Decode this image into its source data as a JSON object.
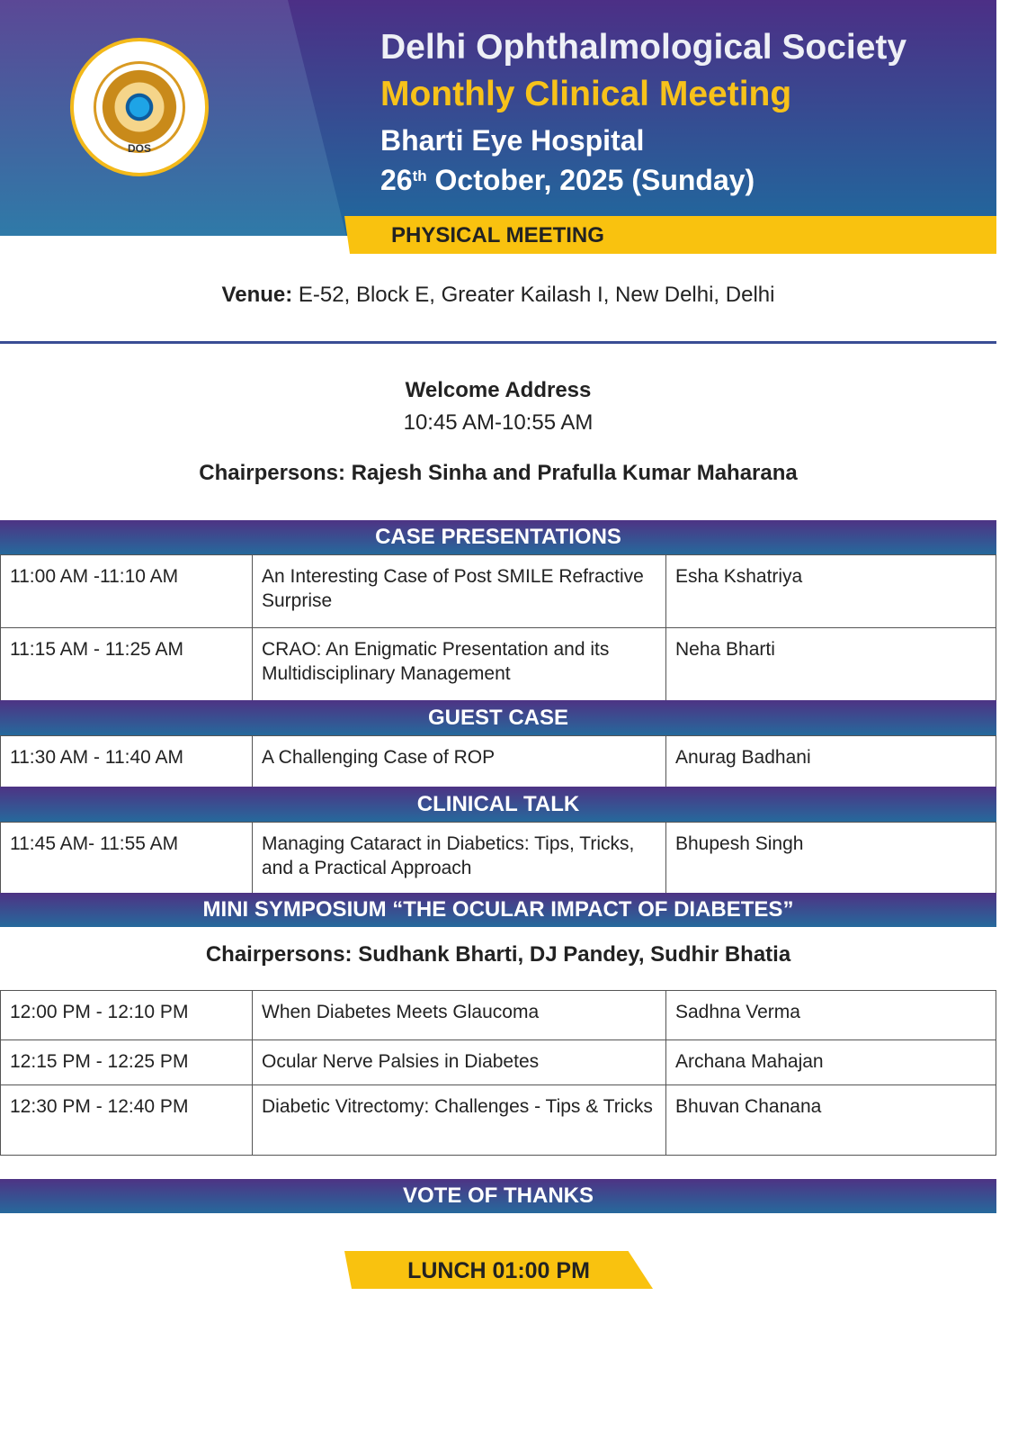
{
  "header": {
    "org": "Delhi Ophthalmological Society",
    "event": "Monthly Clinical Meeting",
    "host": "Bharti Eye Hospital",
    "date_day": "26",
    "date_sup": "th",
    "date_rest": "October, 2025 (Sunday)",
    "meeting_type": "PHYSICAL MEETING",
    "logo_text": "DELHI OPHTHALMOLOGICAL SOCIETY",
    "logo_abbr": "DOS"
  },
  "colors": {
    "band_top": "#4e3384",
    "band_bottom": "#26699c",
    "accent_yellow": "#f9c20f"
  },
  "venue": {
    "label": "Venue:",
    "value": "E-52, Block E, Greater Kailash I, New Delhi, Delhi"
  },
  "welcome": {
    "title": "Welcome Address",
    "time": "10:45 AM-10:55 AM",
    "chairpersons": "Chairpersons: Rajesh Sinha and Prafulla Kumar Maharana"
  },
  "sections": [
    {
      "title": "CASE PRESENTATIONS",
      "rows": [
        {
          "time": "11:00 AM -11:10 AM",
          "topic": "An Interesting Case of Post SMILE Refractive Surprise",
          "speaker": "Esha Kshatriya"
        },
        {
          "time": "11:15 AM - 11:25 AM",
          "topic": "CRAO: An Enigmatic Presentation and its Multidisciplinary Management",
          "speaker": "Neha Bharti"
        }
      ]
    },
    {
      "title": "GUEST CASE",
      "rows": [
        {
          "time": "11:30 AM - 11:40 AM",
          "topic": "A Challenging Case of ROP",
          "speaker": "Anurag Badhani"
        }
      ]
    },
    {
      "title": "CLINICAL TALK",
      "rows": [
        {
          "time": "11:45 AM- 11:55 AM",
          "topic": "Managing Cataract in Diabetics: Tips, Tricks, and a Practical Approach",
          "speaker": "Bhupesh Singh"
        }
      ]
    },
    {
      "title": "MINI SYMPOSIUM “THE OCULAR IMPACT OF DIABETES”",
      "chairpersons": "Chairpersons: Sudhank Bharti, DJ Pandey, Sudhir Bhatia",
      "rows": [
        {
          "time": "12:00 PM - 12:10 PM",
          "topic": "When Diabetes Meets Glaucoma",
          "speaker": "Sadhna Verma"
        },
        {
          "time": "12:15 PM - 12:25 PM",
          "topic": "Ocular Nerve Palsies in Diabetes",
          "speaker": "Archana Mahajan"
        },
        {
          "time": "12:30 PM - 12:40 PM",
          "topic": "Diabetic Vitrectomy: Challenges - Tips & Tricks",
          "speaker": "Bhuvan Chanana"
        }
      ]
    }
  ],
  "closing": {
    "vote": "VOTE OF THANKS",
    "lunch": "LUNCH 01:00 PM"
  }
}
